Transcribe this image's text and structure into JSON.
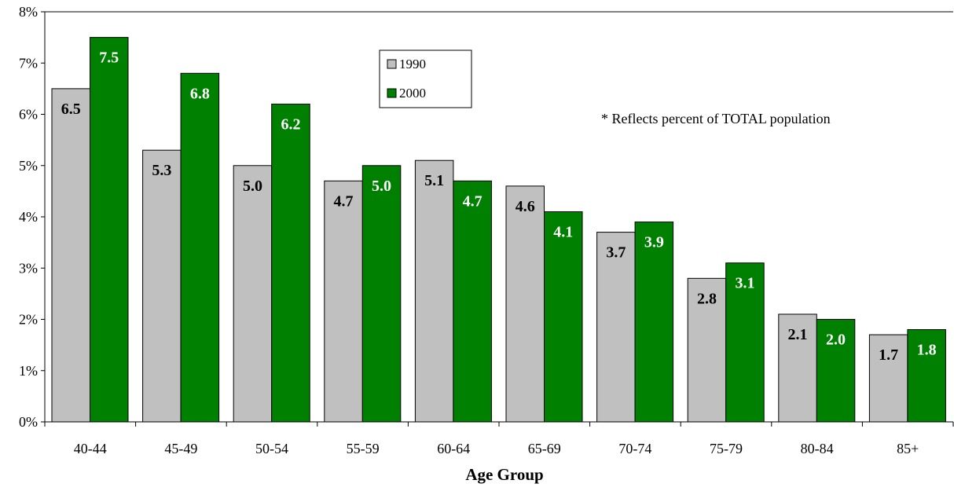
{
  "chart_data": {
    "type": "bar",
    "categories": [
      "40-44",
      "45-49",
      "50-54",
      "55-59",
      "60-64",
      "65-69",
      "70-74",
      "75-79",
      "80-84",
      "85+"
    ],
    "series": [
      {
        "name": "1990",
        "color": "#c0c0c0",
        "label_color": "#000000",
        "values": [
          6.5,
          5.3,
          5.0,
          4.7,
          5.1,
          4.6,
          3.7,
          2.8,
          2.1,
          1.7
        ],
        "labels": [
          "6.5",
          "5.3",
          "5.0",
          "4.7",
          "5.1",
          "4.6",
          "3.7",
          "2.8",
          "2.1",
          "1.7"
        ]
      },
      {
        "name": "2000",
        "color": "#008000",
        "label_color": "#ffffff",
        "values": [
          7.5,
          6.8,
          6.2,
          5.0,
          4.7,
          4.1,
          3.9,
          3.1,
          2.0,
          1.8
        ],
        "labels": [
          "7.5",
          "6.8",
          "6.2",
          "5.0",
          "4.7",
          "4.1",
          "3.9",
          "3.1",
          "2.0",
          "1.8"
        ]
      }
    ],
    "ylim": [
      0,
      8
    ],
    "yticks": [
      "0%",
      "1%",
      "2%",
      "3%",
      "4%",
      "5%",
      "6%",
      "7%",
      "8%"
    ],
    "xlabel": "Age Group",
    "ylabel": "",
    "annotation": "* Reflects percent of TOTAL population",
    "legend_position": "top-center",
    "grid": false
  }
}
